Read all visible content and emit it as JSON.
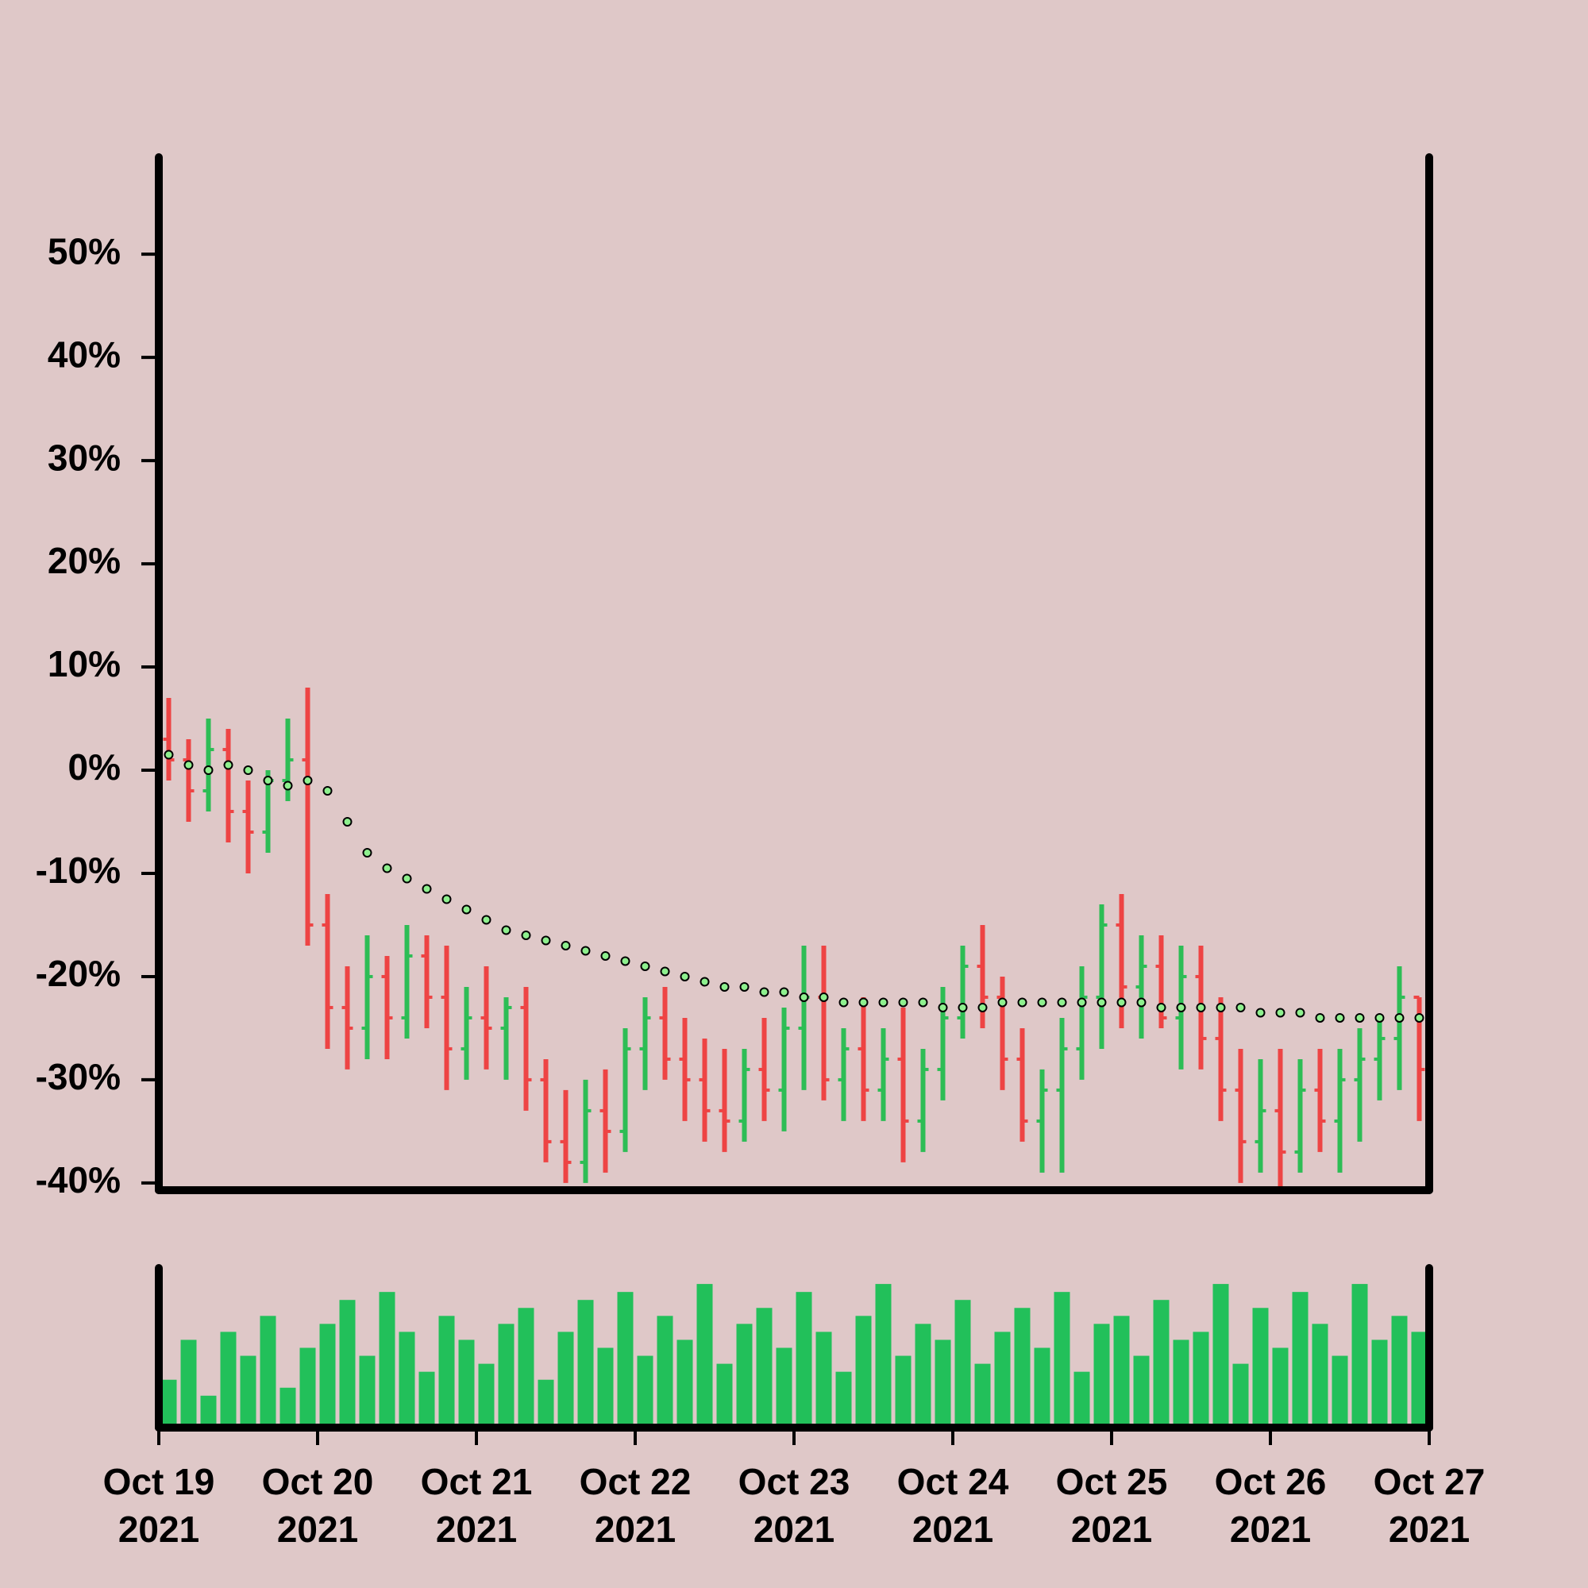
{
  "chart_data": {
    "type": "ohlc",
    "x": [
      0,
      0.125,
      0.25,
      0.375,
      0.5,
      0.625,
      0.75,
      0.875,
      1,
      1.125,
      1.25,
      1.375,
      1.5,
      1.625,
      1.75,
      1.875,
      2,
      2.125,
      2.25,
      2.375,
      2.5,
      2.625,
      2.75,
      2.875,
      3,
      3.125,
      3.25,
      3.375,
      3.5,
      3.625,
      3.75,
      3.875,
      4,
      4.125,
      4.25,
      4.375,
      4.5,
      4.625,
      4.75,
      4.875,
      5,
      5.125,
      5.25,
      5.375,
      5.5,
      5.625,
      5.75,
      5.875,
      6,
      6.125,
      6.25,
      6.375,
      6.5,
      6.625,
      6.75,
      6.875,
      7,
      7.125,
      7.25,
      7.375,
      7.5,
      7.625,
      7.75,
      7.875
    ],
    "open": [
      3,
      1,
      -2,
      2,
      -4,
      -6,
      -1,
      1,
      -15,
      -23,
      -25,
      -20,
      -24,
      -18,
      -22,
      -27,
      -24,
      -25,
      -23,
      -30,
      -36,
      -38,
      -33,
      -35,
      -27,
      -24,
      -28,
      -30,
      -33,
      -34,
      -29,
      -31,
      -25,
      -22,
      -30,
      -27,
      -31,
      -28,
      -34,
      -29,
      -24,
      -19,
      -22,
      -28,
      -34,
      -31,
      -27,
      -22,
      -15,
      -21,
      -19,
      -24,
      -20,
      -26,
      -31,
      -36,
      -33,
      -37,
      -31,
      -34,
      -30,
      -28,
      -26,
      -22
    ],
    "high": [
      7,
      3,
      5,
      4,
      -1,
      0,
      5,
      8,
      -12,
      -19,
      -16,
      -18,
      -15,
      -16,
      -17,
      -21,
      -19,
      -22,
      -21,
      -28,
      -31,
      -30,
      -29,
      -25,
      -22,
      -21,
      -24,
      -26,
      -27,
      -27,
      -24,
      -23,
      -17,
      -17,
      -25,
      -22,
      -25,
      -23,
      -27,
      -21,
      -17,
      -15,
      -20,
      -25,
      -29,
      -24,
      -19,
      -13,
      -12,
      -16,
      -16,
      -17,
      -17,
      -22,
      -27,
      -28,
      -27,
      -28,
      -27,
      -27,
      -25,
      -24,
      -19,
      -22
    ],
    "low": [
      -1,
      -5,
      -4,
      -7,
      -10,
      -8,
      -3,
      -17,
      -27,
      -29,
      -28,
      -28,
      -26,
      -25,
      -31,
      -30,
      -29,
      -30,
      -33,
      -38,
      -40,
      -40,
      -39,
      -37,
      -31,
      -30,
      -34,
      -36,
      -37,
      -36,
      -34,
      -35,
      -31,
      -32,
      -34,
      -34,
      -34,
      -38,
      -37,
      -32,
      -26,
      -25,
      -31,
      -36,
      -39,
      -39,
      -30,
      -27,
      -25,
      -26,
      -25,
      -29,
      -29,
      -34,
      -40,
      -39,
      -41,
      -39,
      -37,
      -39,
      -36,
      -32,
      -31,
      -34
    ],
    "close": [
      1,
      -2,
      2,
      -4,
      -6,
      -1,
      1,
      -15,
      -23,
      -25,
      -20,
      -24,
      -18,
      -22,
      -27,
      -24,
      -25,
      -23,
      -30,
      -36,
      -38,
      -33,
      -35,
      -27,
      -24,
      -28,
      -30,
      -33,
      -34,
      -29,
      -31,
      -25,
      -22,
      -30,
      -27,
      -31,
      -28,
      -34,
      -29,
      -24,
      -19,
      -22,
      -28,
      -34,
      -31,
      -27,
      -22,
      -15,
      -21,
      -19,
      -24,
      -20,
      -26,
      -31,
      -36,
      -33,
      -37,
      -31,
      -34,
      -30,
      -28,
      -26,
      -22,
      -29
    ],
    "ma": [
      1.5,
      0.5,
      0,
      0.5,
      0,
      -1,
      -1.5,
      -1,
      -2,
      -5,
      -8,
      -9.5,
      -10.5,
      -11.5,
      -12.5,
      -13.5,
      -14.5,
      -15.5,
      -16,
      -16.5,
      -17,
      -17.5,
      -18,
      -18.5,
      -19,
      -19.5,
      -20,
      -20.5,
      -21,
      -21,
      -21.5,
      -21.5,
      -22,
      -22,
      -22.5,
      -22.5,
      -22.5,
      -22.5,
      -22.5,
      -23,
      -23,
      -23,
      -22.5,
      -22.5,
      -22.5,
      -22.5,
      -22.5,
      -22.5,
      -22.5,
      -22.5,
      -23,
      -23,
      -23,
      -23,
      -23,
      -23.5,
      -23.5,
      -23.5,
      -24,
      -24,
      -24,
      -24,
      -24,
      -24
    ],
    "volume": [
      30,
      55,
      20,
      60,
      45,
      70,
      25,
      50,
      65,
      80,
      45,
      85,
      60,
      35,
      70,
      55,
      40,
      65,
      75,
      30,
      60,
      80,
      50,
      85,
      45,
      70,
      55,
      90,
      40,
      65,
      75,
      50,
      85,
      60,
      35,
      70,
      90,
      45,
      65,
      55,
      80,
      40,
      60,
      75,
      50,
      85,
      35,
      65,
      70,
      45,
      80,
      55,
      60,
      90,
      40,
      75,
      50,
      85,
      65,
      45,
      90,
      55,
      70,
      60
    ],
    "ylim": [
      -40.7,
      59.4
    ],
    "yticks": [
      {
        "value": -40,
        "label": "-40%"
      },
      {
        "value": -30,
        "label": "-30%"
      },
      {
        "value": -20,
        "label": "-20%"
      },
      {
        "value": -10,
        "label": "-10%"
      },
      {
        "value": 0,
        "label": "0%"
      },
      {
        "value": 10,
        "label": "10%"
      },
      {
        "value": 20,
        "label": "20%"
      },
      {
        "value": 30,
        "label": "30%"
      },
      {
        "value": 40,
        "label": "40%"
      },
      {
        "value": 50,
        "label": "50%"
      }
    ],
    "xlim": [
      0,
      8
    ],
    "xticks": [
      {
        "value": 0,
        "label": "Oct 19\n2021"
      },
      {
        "value": 1,
        "label": "Oct 20\n2021"
      },
      {
        "value": 2,
        "label": "Oct 21\n2021"
      },
      {
        "value": 3,
        "label": "Oct 22\n2021"
      },
      {
        "value": 4,
        "label": "Oct 23\n2021"
      },
      {
        "value": 5,
        "label": "Oct 24\n2021"
      },
      {
        "value": 6,
        "label": "Oct 25\n2021"
      },
      {
        "value": 7,
        "label": "Oct 26\n2021"
      },
      {
        "value": 8,
        "label": "Oct 27\n2021"
      }
    ],
    "volume_lim": [
      0,
      100
    ],
    "up_color": "#2dbd55",
    "down_color": "#ee4444",
    "ma_color": "#8ef08e",
    "volume_color": "#22c05a"
  }
}
